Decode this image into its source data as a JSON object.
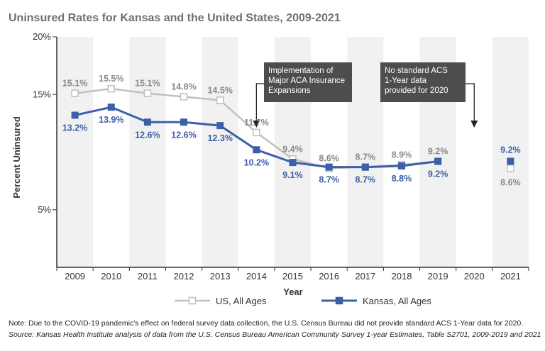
{
  "colors": {
    "us": "#c0c0c0",
    "kansas": "#3b5fa8",
    "band": "#f1f1f1",
    "annotation": "#4d4d4d"
  },
  "chart_data": {
    "type": "line",
    "title": "Uninsured Rates for Kansas and the United States, 2009-2021",
    "xlabel": "Year",
    "ylabel": "Percent Uninsured",
    "categories": [
      "2009",
      "2010",
      "2011",
      "2012",
      "2013",
      "2014",
      "2015",
      "2016",
      "2017",
      "2018",
      "2019",
      "2020",
      "2021"
    ],
    "yticks": [
      {
        "label": "5%",
        "pos": 5
      },
      {
        "label": "15%",
        "pos": 15
      },
      {
        "label": "20%",
        "pos": 20
      }
    ],
    "ylim": [
      0,
      20
    ],
    "series": [
      {
        "name": "US, All Ages",
        "values": [
          15.1,
          15.5,
          15.1,
          14.8,
          14.5,
          11.7,
          9.4,
          8.6,
          8.7,
          8.9,
          9.2,
          null,
          8.6
        ],
        "labels": [
          "15.1%",
          "15.5%",
          "15.1%",
          "14.8%",
          "14.5%",
          "11.7%",
          "9.4%",
          "8.6%",
          "8.7%",
          "8.9%",
          "9.2%",
          "",
          "8.6%"
        ]
      },
      {
        "name": "Kansas, All Ages",
        "values": [
          13.2,
          13.9,
          12.6,
          12.6,
          12.3,
          10.2,
          9.1,
          8.7,
          8.7,
          8.8,
          9.2,
          null,
          9.2
        ],
        "labels": [
          "13.2%",
          "13.9%",
          "12.6%",
          "12.6%",
          "12.3%",
          "10.2%",
          "9.1%",
          "8.7%",
          "8.7%",
          "8.8%",
          "9.2%",
          "",
          "9.2%"
        ]
      }
    ],
    "annotations": [
      {
        "lines": [
          "Implementation of",
          "Major ACA Insurance",
          "Expansions"
        ],
        "category": "2014"
      },
      {
        "lines": [
          "No standard ACS",
          "1-Year data",
          "provided for 2020"
        ],
        "category": "2020"
      }
    ],
    "legend": "bottom-center",
    "grid": false
  },
  "notes": {
    "note": "Note: Due to the COVID-19 pandemic's effect on federal survey data collection, the U.S. Census Bureau did not provide standard ACS 1-Year data for 2020.",
    "source": "Source: Kansas Health Institute analysis of data from the U.S. Census Bureau American Community Survey 1-year Estimates, Table S2701, 2009-2019 and 2021"
  }
}
